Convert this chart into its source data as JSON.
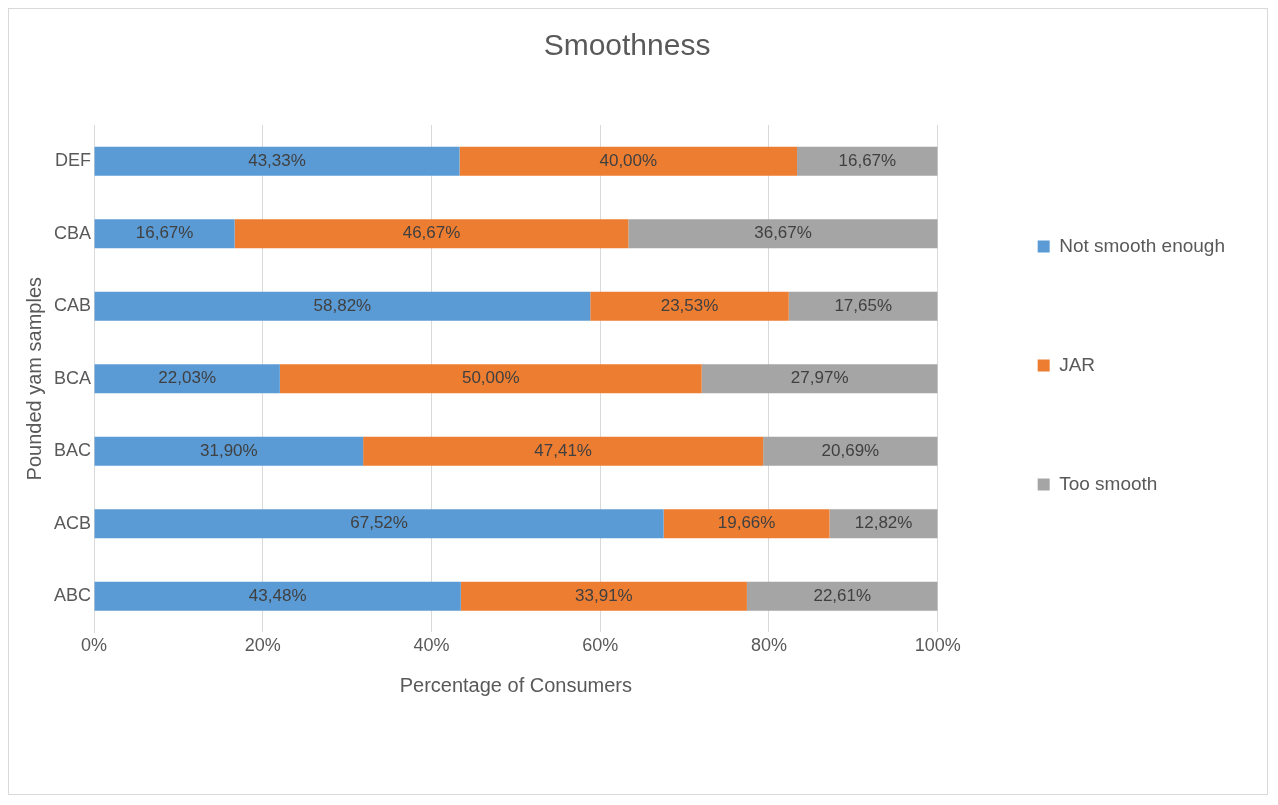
{
  "chart_data": {
    "type": "bar",
    "orientation": "horizontal",
    "stacked": true,
    "title": "Smoothness",
    "xlabel": "Percentage of Consumers",
    "ylabel": "Pounded yam samples",
    "categories": [
      "DEF",
      "CBA",
      "CAB",
      "BCA",
      "BAC",
      "ACB",
      "ABC"
    ],
    "series": [
      {
        "name": "Not smooth enough",
        "color": "#5b9bd5",
        "values": [
          43.33,
          16.67,
          58.82,
          22.03,
          31.9,
          67.52,
          43.48
        ],
        "value_labels": [
          "43,33%",
          "16,67%",
          "58,82%",
          "22,03%",
          "31,90%",
          "67,52%",
          "43,48%"
        ]
      },
      {
        "name": "JAR",
        "color": "#ed7d31",
        "values": [
          40.0,
          46.67,
          23.53,
          50.0,
          47.41,
          19.66,
          33.91
        ],
        "value_labels": [
          "40,00%",
          "46,67%",
          "23,53%",
          "50,00%",
          "47,41%",
          "19,66%",
          "33,91%"
        ]
      },
      {
        "name": "Too smooth",
        "color": "#a5a5a5",
        "values": [
          16.67,
          36.67,
          17.65,
          27.97,
          20.69,
          12.82,
          22.61
        ],
        "value_labels": [
          "16,67%",
          "36,67%",
          "17,65%",
          "27,97%",
          "20,69%",
          "12,82%",
          "22,61%"
        ]
      }
    ],
    "xlim": [
      0,
      100
    ],
    "xticks": [
      {
        "value": 0,
        "label": "0%"
      },
      {
        "value": 20,
        "label": "20%"
      },
      {
        "value": 40,
        "label": "40%"
      },
      {
        "value": 60,
        "label": "60%"
      },
      {
        "value": 80,
        "label": "80%"
      },
      {
        "value": 100,
        "label": "100%"
      }
    ],
    "grid": "x",
    "legend": "right"
  }
}
